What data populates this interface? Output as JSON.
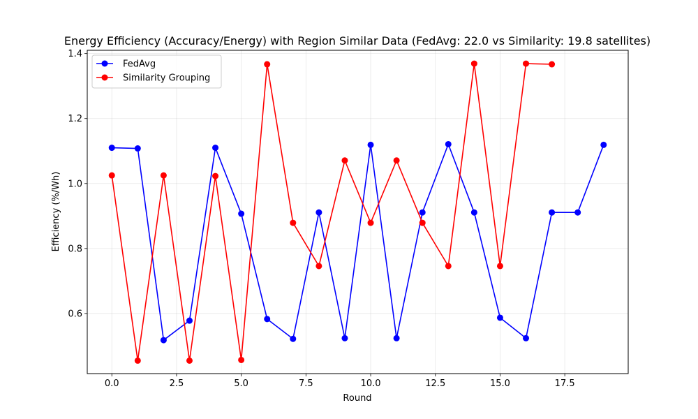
{
  "chart_data": {
    "type": "line",
    "title": "Energy Efficiency (Accuracy/Energy) with Region Similar Data (FedAvg: 22.0 vs Similarity: 19.8 satellites)",
    "xlabel": "Round",
    "ylabel": "Efficiency (%/Wh)",
    "xlim": [
      -0.95,
      19.95
    ],
    "ylim": [
      0.415,
      1.41
    ],
    "xticks": [
      0.0,
      2.5,
      5.0,
      7.5,
      10.0,
      12.5,
      15.0,
      17.5
    ],
    "xtick_labels": [
      "0.0",
      "2.5",
      "5.0",
      "7.5",
      "10.0",
      "12.5",
      "15.0",
      "17.5"
    ],
    "yticks": [
      0.6,
      0.8,
      1.0,
      1.2,
      1.4
    ],
    "ytick_labels": [
      "0.6",
      "0.8",
      "1.0",
      "1.2",
      "1.4"
    ],
    "grid": true,
    "legend_position": "top-left",
    "series": [
      {
        "name": "FedAvg",
        "color": "#0000ff",
        "x": [
          0,
          1,
          2,
          3,
          4,
          5,
          6,
          7,
          8,
          9,
          10,
          11,
          12,
          13,
          14,
          15,
          16,
          17,
          18,
          19
        ],
        "y": [
          1.11,
          1.108,
          0.518,
          0.578,
          1.11,
          0.907,
          0.583,
          0.522,
          0.911,
          0.524,
          1.119,
          0.524,
          0.911,
          1.121,
          0.911,
          0.587,
          0.524,
          0.911,
          0.911,
          1.119
        ]
      },
      {
        "name": "Similarity Grouping",
        "color": "#ff0000",
        "x": [
          0,
          1,
          2,
          3,
          4,
          5,
          6,
          7,
          8,
          9,
          10,
          11,
          12,
          13,
          14,
          15,
          16,
          17
        ],
        "y": [
          1.025,
          0.455,
          1.025,
          0.455,
          1.023,
          0.457,
          1.367,
          0.879,
          0.746,
          1.071,
          0.879,
          1.071,
          0.879,
          0.746,
          1.369,
          0.746,
          1.369,
          1.367
        ]
      }
    ]
  }
}
